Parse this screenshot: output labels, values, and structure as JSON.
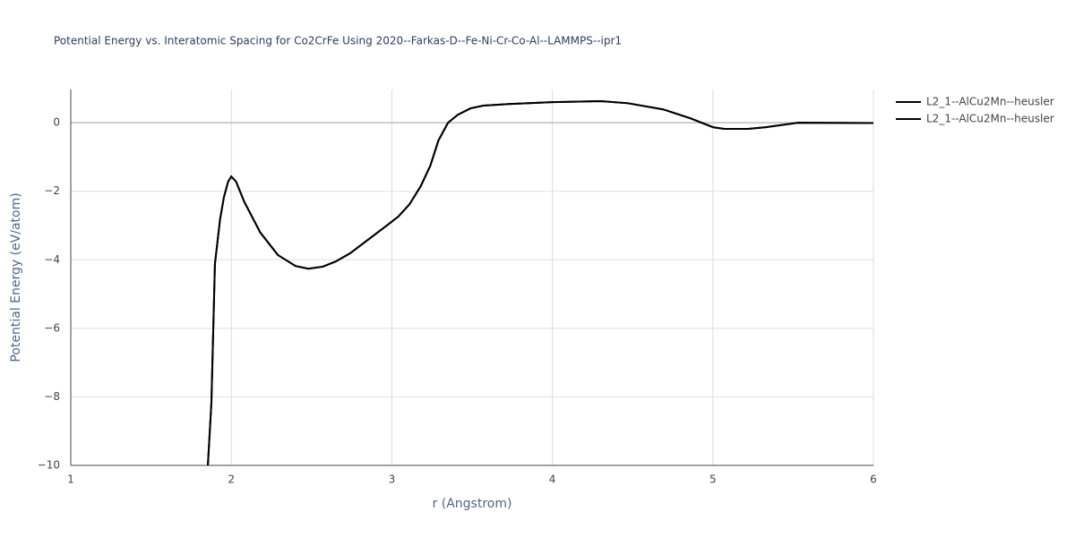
{
  "chart_data": {
    "type": "line",
    "title": "Potential Energy vs. Interatomic Spacing for Co2CrFe Using 2020--Farkas-D--Fe-Ni-Cr-Co-Al--LAMMPS--ipr1",
    "xlabel": "r (Angstrom)",
    "ylabel": "Potential Energy (eV/atom)",
    "x": [
      1.854,
      1.876,
      1.898,
      1.93,
      1.954,
      1.98,
      2.0,
      2.03,
      2.08,
      2.18,
      2.29,
      2.4,
      2.48,
      2.57,
      2.65,
      2.74,
      2.85,
      2.96,
      3.04,
      3.11,
      3.18,
      3.24,
      3.29,
      3.35,
      3.41,
      3.49,
      3.57,
      3.74,
      4.0,
      4.3,
      4.47,
      4.69,
      4.86,
      5.0,
      5.07,
      5.22,
      5.33,
      5.53,
      6.0
    ],
    "series": [
      {
        "name": "L2_1--AlCu2Mn--heusler",
        "color": "#000000",
        "values": [
          -10,
          -8.17,
          -4.12,
          -2.82,
          -2.17,
          -1.72,
          -1.57,
          -1.72,
          -2.3,
          -3.2,
          -3.86,
          -4.18,
          -4.26,
          -4.2,
          -4.05,
          -3.81,
          -3.42,
          -3.03,
          -2.74,
          -2.38,
          -1.85,
          -1.25,
          -0.52,
          0,
          0.23,
          0.42,
          0.5,
          0.55,
          0.6,
          0.63,
          0.57,
          0.39,
          0.13,
          -0.13,
          -0.18,
          -0.18,
          -0.13,
          0,
          -0.01
        ]
      },
      {
        "name": "L2_1--AlCu2Mn--heusler",
        "color": "#000000",
        "values": [
          -10,
          -8.17,
          -4.12,
          -2.82,
          -2.17,
          -1.72,
          -1.57,
          -1.72,
          -2.3,
          -3.2,
          -3.86,
          -4.18,
          -4.26,
          -4.2,
          -4.05,
          -3.81,
          -3.42,
          -3.03,
          -2.74,
          -2.38,
          -1.85,
          -1.25,
          -0.52,
          0,
          0.23,
          0.42,
          0.5,
          0.55,
          0.6,
          0.63,
          0.57,
          0.39,
          0.13,
          -0.13,
          -0.18,
          -0.18,
          -0.13,
          0,
          -0.01
        ]
      }
    ],
    "xlim": [
      1,
      6
    ],
    "ylim": [
      -10,
      0.97
    ],
    "xticks": [
      1,
      2,
      3,
      4,
      5,
      6
    ],
    "yticks": [
      {
        "value": -10,
        "label": "−10"
      },
      {
        "value": -8,
        "label": "−8"
      },
      {
        "value": -6,
        "label": "−6"
      },
      {
        "value": -4,
        "label": "−4"
      },
      {
        "value": -2,
        "label": "−2"
      },
      0
    ],
    "grid": true,
    "legend": "right"
  }
}
